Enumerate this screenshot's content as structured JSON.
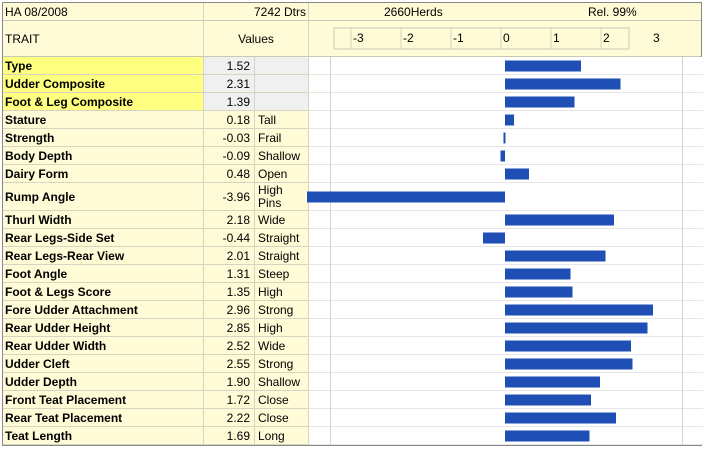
{
  "header": {
    "ha": "HA 08/2008",
    "dtrs": "7242 Dtrs",
    "herds": "2660Herds",
    "rel": "Rel. 99%",
    "trait_label": "TRAIT",
    "values_label": "Values"
  },
  "colors": {
    "bar": "#1f4fb5",
    "composite_bg": "#ffff80",
    "linear_bg": "#fffbd6",
    "header_bg": "#fffbd6"
  },
  "chart_data": {
    "type": "bar",
    "orientation": "horizontal",
    "title": "",
    "xlabel": "",
    "ylabel": "",
    "xlim": [
      -3.5,
      3.5
    ],
    "x_ticks": [
      -3,
      -2,
      -1,
      0,
      1,
      2,
      3
    ],
    "categories": [
      "Type",
      "Udder Composite",
      "Foot & Leg Composite",
      "Stature",
      "Strength",
      "Body Depth",
      "Dairy Form",
      "Rump Angle",
      "Thurl Width",
      "Rear Legs-Side Set",
      "Rear Legs-Rear View",
      "Foot Angle",
      "Foot & Legs Score",
      "Fore Udder Attachment",
      "Rear Udder Height",
      "Rear Udder Width",
      "Udder Cleft",
      "Udder Depth",
      "Front Teat Placement",
      "Rear Teat Placement",
      "Teat Length"
    ],
    "values": [
      1.52,
      2.31,
      1.39,
      0.18,
      -0.03,
      -0.09,
      0.48,
      -3.96,
      2.18,
      -0.44,
      2.01,
      1.31,
      1.35,
      2.96,
      2.85,
      2.52,
      2.55,
      1.9,
      1.72,
      2.22,
      1.69
    ],
    "value_labels": [
      "1.52",
      "2.31",
      "1.39",
      "0.18",
      "-0.03",
      "-0.09",
      "0.48",
      "-3.96",
      "2.18",
      "-0.44",
      "2.01",
      "1.31",
      "1.35",
      "2.96",
      "2.85",
      "2.52",
      "2.55",
      "1.90",
      "1.72",
      "2.22",
      "1.69"
    ],
    "descriptors": [
      "",
      "",
      "",
      "Tall",
      "Frail",
      "Shallow",
      "Open",
      "High Pins",
      "Wide",
      "Straight",
      "Straight",
      "Steep",
      "High",
      "Strong",
      "High",
      "Wide",
      "Strong",
      "Shallow",
      "Close",
      "Close",
      "Long"
    ],
    "composite": [
      true,
      true,
      true,
      false,
      false,
      false,
      false,
      false,
      false,
      false,
      false,
      false,
      false,
      false,
      false,
      false,
      false,
      false,
      false,
      false,
      false
    ]
  }
}
